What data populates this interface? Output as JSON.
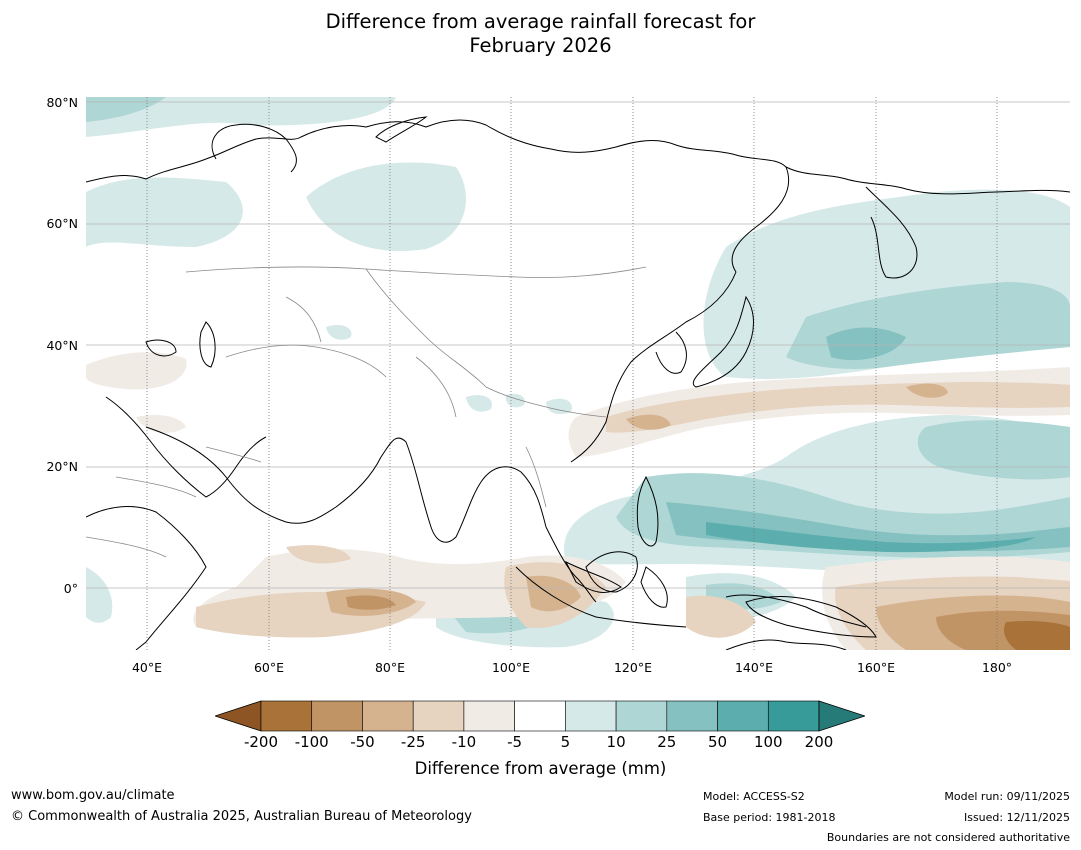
{
  "title_line1": "Difference from average rainfall forecast for",
  "title_line2": "February 2026",
  "map": {
    "lat_labels": [
      "80°N",
      "60°N",
      "40°N",
      "20°N",
      "0°"
    ],
    "lon_labels": [
      "40°E",
      "60°E",
      "80°E",
      "100°E",
      "120°E",
      "140°E",
      "160°E",
      "180°"
    ],
    "region": "Asia, Indian Ocean and western Pacific",
    "extent": {
      "lon_min": 30,
      "lon_max": 192,
      "lat_min": -10,
      "lat_max": 80
    }
  },
  "legend": {
    "title": "Difference from average (mm)",
    "ticks": [
      "-200",
      "-100",
      "-50",
      "-25",
      "-10",
      "-5",
      "5",
      "10",
      "25",
      "50",
      "100",
      "200"
    ],
    "colors": [
      "#8d5524",
      "#a87238",
      "#c09465",
      "#d6b38f",
      "#e6d3c0",
      "#f1ebe6",
      "#ffffff",
      "#d5e9e8",
      "#aed6d5",
      "#85c1c0",
      "#5caeae",
      "#369b99",
      "#267a78"
    ]
  },
  "footer": {
    "website": "www.bom.gov.au/climate",
    "copyright": "© Commonwealth of Australia 2025, Australian Bureau of Meteorology",
    "model": "Model: ACCESS-S2",
    "base_period": "Base period: 1981-2018",
    "model_run": "Model run: 09/11/2025",
    "issued": "Issued: 12/11/2025",
    "disclaimer": "Boundaries are not considered authoritative"
  }
}
